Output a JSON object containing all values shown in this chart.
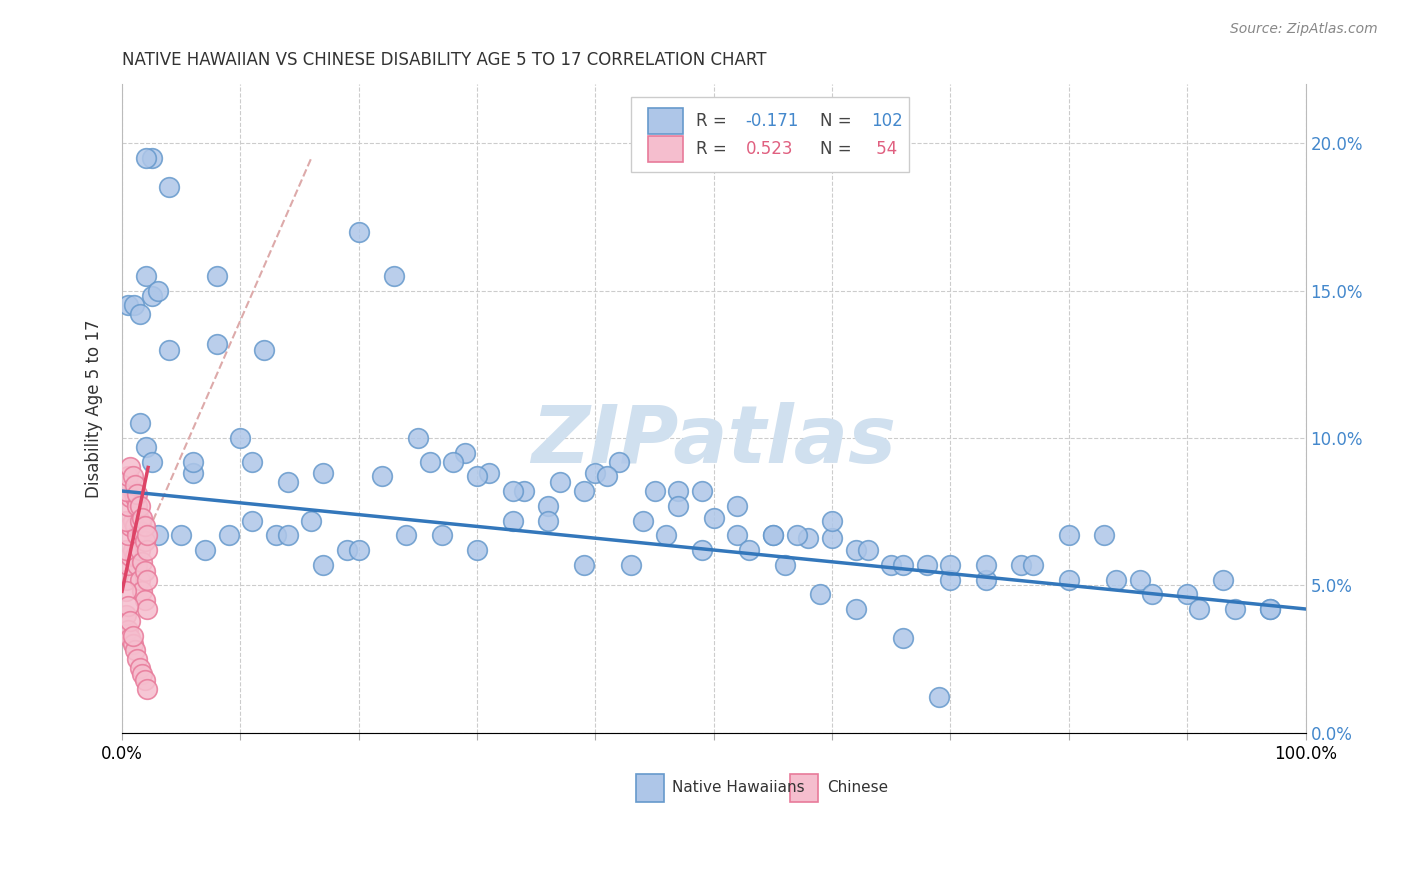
{
  "title": "NATIVE HAWAIIAN VS CHINESE DISABILITY AGE 5 TO 17 CORRELATION CHART",
  "source": "Source: ZipAtlas.com",
  "ylabel": "Disability Age 5 to 17",
  "xlim": [
    0,
    1.0
  ],
  "ylim": [
    0,
    0.22
  ],
  "blue_color": "#aec6e8",
  "blue_edge": "#6699cc",
  "pink_color": "#f5bece",
  "pink_edge": "#e87a9a",
  "blue_line_color": "#3377bb",
  "pink_line_color": "#dd4466",
  "dash_color": "#ddaaaa",
  "watermark": "ZIPatlas",
  "watermark_color": "#d0e0ef",
  "native_hawaiian_x": [
    0.025,
    0.005,
    0.01,
    0.015,
    0.02,
    0.025,
    0.03,
    0.015,
    0.02,
    0.025,
    0.04,
    0.06,
    0.08,
    0.1,
    0.12,
    0.14,
    0.17,
    0.2,
    0.23,
    0.26,
    0.29,
    0.31,
    0.34,
    0.37,
    0.4,
    0.42,
    0.45,
    0.47,
    0.5,
    0.52,
    0.55,
    0.58,
    0.6,
    0.62,
    0.65,
    0.68,
    0.7,
    0.73,
    0.76,
    0.8,
    0.83,
    0.86,
    0.9,
    0.93,
    0.97,
    0.03,
    0.05,
    0.07,
    0.09,
    0.11,
    0.13,
    0.16,
    0.19,
    0.22,
    0.25,
    0.28,
    0.3,
    0.33,
    0.36,
    0.39,
    0.41,
    0.44,
    0.47,
    0.49,
    0.52,
    0.55,
    0.57,
    0.6,
    0.63,
    0.66,
    0.7,
    0.73,
    0.77,
    0.8,
    0.84,
    0.87,
    0.91,
    0.94,
    0.97,
    0.02,
    0.04,
    0.06,
    0.08,
    0.11,
    0.14,
    0.17,
    0.2,
    0.24,
    0.27,
    0.3,
    0.33,
    0.36,
    0.39,
    0.43,
    0.46,
    0.49,
    0.53,
    0.56,
    0.59,
    0.62,
    0.66,
    0.69
  ],
  "native_hawaiian_y": [
    0.195,
    0.145,
    0.145,
    0.142,
    0.155,
    0.148,
    0.15,
    0.105,
    0.097,
    0.092,
    0.13,
    0.088,
    0.155,
    0.1,
    0.13,
    0.085,
    0.088,
    0.17,
    0.155,
    0.092,
    0.095,
    0.088,
    0.082,
    0.085,
    0.088,
    0.092,
    0.082,
    0.082,
    0.073,
    0.067,
    0.067,
    0.066,
    0.066,
    0.062,
    0.057,
    0.057,
    0.052,
    0.052,
    0.057,
    0.067,
    0.067,
    0.052,
    0.047,
    0.052,
    0.042,
    0.067,
    0.067,
    0.062,
    0.067,
    0.072,
    0.067,
    0.072,
    0.062,
    0.087,
    0.1,
    0.092,
    0.087,
    0.082,
    0.077,
    0.082,
    0.087,
    0.072,
    0.077,
    0.082,
    0.077,
    0.067,
    0.067,
    0.072,
    0.062,
    0.057,
    0.057,
    0.057,
    0.057,
    0.052,
    0.052,
    0.047,
    0.042,
    0.042,
    0.042,
    0.195,
    0.185,
    0.092,
    0.132,
    0.092,
    0.067,
    0.057,
    0.062,
    0.067,
    0.067,
    0.062,
    0.072,
    0.072,
    0.057,
    0.057,
    0.067,
    0.062,
    0.062,
    0.057,
    0.047,
    0.042,
    0.032,
    0.012
  ],
  "chinese_x": [
    0.003,
    0.005,
    0.007,
    0.009,
    0.011,
    0.013,
    0.015,
    0.017,
    0.019,
    0.021,
    0.003,
    0.005,
    0.007,
    0.009,
    0.011,
    0.013,
    0.015,
    0.017,
    0.019,
    0.021,
    0.003,
    0.005,
    0.007,
    0.009,
    0.011,
    0.013,
    0.015,
    0.017,
    0.019,
    0.021,
    0.003,
    0.005,
    0.007,
    0.009,
    0.011,
    0.013,
    0.015,
    0.017,
    0.019,
    0.021,
    0.003,
    0.005,
    0.007,
    0.009,
    0.011,
    0.013,
    0.015,
    0.017,
    0.019,
    0.021,
    0.003,
    0.005,
    0.007,
    0.009
  ],
  "chinese_y": [
    0.052,
    0.057,
    0.06,
    0.062,
    0.06,
    0.057,
    0.052,
    0.048,
    0.045,
    0.042,
    0.062,
    0.067,
    0.07,
    0.072,
    0.07,
    0.067,
    0.062,
    0.058,
    0.055,
    0.052,
    0.072,
    0.077,
    0.08,
    0.082,
    0.08,
    0.077,
    0.072,
    0.068,
    0.065,
    0.062,
    0.082,
    0.087,
    0.09,
    0.087,
    0.084,
    0.081,
    0.077,
    0.073,
    0.07,
    0.067,
    0.04,
    0.035,
    0.032,
    0.03,
    0.028,
    0.025,
    0.022,
    0.02,
    0.018,
    0.015,
    0.048,
    0.043,
    0.038,
    0.033
  ],
  "blue_line_x0": 0.0,
  "blue_line_y0": 0.082,
  "blue_line_x1": 1.0,
  "blue_line_y1": 0.042,
  "pink_line_x0": 0.0,
  "pink_line_y0": 0.048,
  "pink_line_x1": 0.022,
  "pink_line_y1": 0.09,
  "dash_line_x0": 0.0,
  "dash_line_y0": 0.048,
  "dash_line_x1": 0.16,
  "dash_line_y1": 0.195
}
